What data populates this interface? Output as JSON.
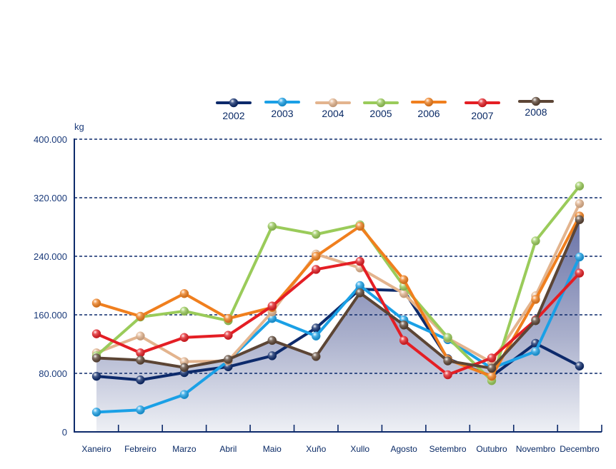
{
  "chart_data": {
    "type": "line",
    "title": "",
    "xlabel": "",
    "ylabel": "kg",
    "ylim": [
      0,
      400000
    ],
    "yticks": [
      0,
      80000,
      160000,
      240000,
      320000,
      400000
    ],
    "ytick_labels": [
      "0",
      "80.000",
      "160.000",
      "240.000",
      "320.000",
      "400.000"
    ],
    "grid": true,
    "legend_position": "top",
    "categories": [
      "Xaneiro",
      "Febreiro",
      "Marzo",
      "Abril",
      "Maio",
      "Xuño",
      "Xullo",
      "Agosto",
      "Setembro",
      "Outubro",
      "Novembro",
      "Decembro"
    ],
    "area_series": "2008",
    "series": [
      {
        "name": "2002",
        "color": "#0d2a6b",
        "values": [
          76000,
          71000,
          81000,
          89000,
          104000,
          142000,
          195000,
          193000,
          100000,
          76000,
          121000,
          90000
        ]
      },
      {
        "name": "2003",
        "color": "#1aa0e6",
        "values": [
          27000,
          30000,
          51000,
          97000,
          155000,
          131000,
          200000,
          153000,
          126000,
          87000,
          110000,
          239000
        ]
      },
      {
        "name": "2004",
        "color": "#e3b48e",
        "values": [
          108000,
          131000,
          96000,
          97000,
          164000,
          243000,
          224000,
          189000,
          128000,
          95000,
          186000,
          312000
        ]
      },
      {
        "name": "2005",
        "color": "#9acb5a",
        "values": [
          104000,
          157000,
          165000,
          152000,
          281000,
          270000,
          283000,
          199000,
          129000,
          70000,
          261000,
          336000
        ]
      },
      {
        "name": "2006",
        "color": "#f07f1e",
        "values": [
          176000,
          158000,
          189000,
          155000,
          170000,
          240000,
          281000,
          208000,
          99000,
          76000,
          181000,
          295000
        ]
      },
      {
        "name": "2007",
        "color": "#e41e24",
        "values": [
          134000,
          108000,
          129000,
          132000,
          172000,
          222000,
          233000,
          125000,
          78000,
          101000,
          153000,
          217000
        ]
      },
      {
        "name": "2008",
        "color": "#5c4535",
        "values": [
          101000,
          98000,
          88000,
          99000,
          125000,
          103000,
          190000,
          146000,
          97000,
          87000,
          152000,
          290000
        ]
      }
    ]
  }
}
